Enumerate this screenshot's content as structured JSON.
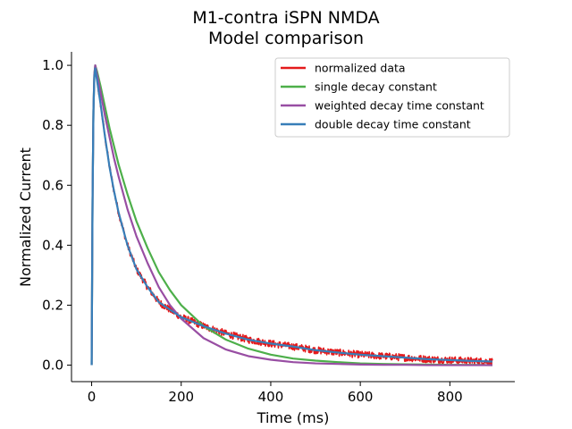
{
  "chart_data": {
    "type": "line",
    "title": "M1-contra    iSPN    NMDA",
    "subtitle": "Model comparison",
    "xlabel": "Time (ms)",
    "ylabel": "Normalized Current",
    "xlim": [
      -45,
      945
    ],
    "ylim": [
      -0.055,
      1.045
    ],
    "xticks": [
      0,
      200,
      400,
      600,
      800
    ],
    "yticks": [
      0.0,
      0.2,
      0.4,
      0.6,
      0.8,
      1.0
    ],
    "ytick_labels": [
      "0.0",
      "0.2",
      "0.4",
      "0.6",
      "0.8",
      "1.0"
    ],
    "grid": false,
    "legend_position": "top-right",
    "series": [
      {
        "name": "normalized data",
        "color": "#e41a1c",
        "noisy": true,
        "x": [
          0,
          2,
          4,
          6,
          8,
          12,
          20,
          30,
          40,
          50,
          60,
          80,
          100,
          125,
          150,
          175,
          200,
          250,
          300,
          350,
          400,
          450,
          500,
          550,
          600,
          650,
          700,
          750,
          800,
          850,
          895
        ],
        "y": [
          0.0,
          0.55,
          0.85,
          0.96,
          0.99,
          0.95,
          0.87,
          0.76,
          0.66,
          0.58,
          0.51,
          0.4,
          0.32,
          0.26,
          0.21,
          0.185,
          0.16,
          0.13,
          0.105,
          0.085,
          0.072,
          0.062,
          0.05,
          0.042,
          0.035,
          0.03,
          0.025,
          0.02,
          0.017,
          0.014,
          0.012
        ]
      },
      {
        "name": "single decay constant",
        "color": "#4daf4a",
        "x": [
          0,
          2,
          4,
          6,
          8,
          12,
          20,
          30,
          40,
          50,
          60,
          80,
          100,
          125,
          150,
          175,
          200,
          250,
          300,
          350,
          400,
          450,
          500,
          550,
          600,
          650,
          700,
          750,
          800,
          850,
          895
        ],
        "y": [
          0.0,
          0.55,
          0.85,
          0.97,
          1.0,
          0.98,
          0.93,
          0.86,
          0.79,
          0.73,
          0.67,
          0.57,
          0.48,
          0.39,
          0.31,
          0.25,
          0.2,
          0.13,
          0.085,
          0.055,
          0.035,
          0.022,
          0.015,
          0.01,
          0.006,
          0.004,
          0.003,
          0.002,
          0.001,
          0.001,
          0.0
        ]
      },
      {
        "name": "weighted decay time constant",
        "color": "#984ea3",
        "x": [
          0,
          2,
          4,
          6,
          8,
          12,
          20,
          30,
          40,
          50,
          60,
          80,
          100,
          125,
          150,
          175,
          200,
          250,
          300,
          350,
          400,
          450,
          500,
          550,
          600,
          650,
          700,
          750,
          800,
          850,
          895
        ],
        "y": [
          0.0,
          0.55,
          0.85,
          0.97,
          1.0,
          0.97,
          0.91,
          0.83,
          0.76,
          0.69,
          0.63,
          0.52,
          0.43,
          0.34,
          0.26,
          0.2,
          0.155,
          0.09,
          0.052,
          0.03,
          0.018,
          0.01,
          0.006,
          0.004,
          0.002,
          0.001,
          0.001,
          0.0,
          0.0,
          0.0,
          0.0
        ]
      },
      {
        "name": "double decay time constant",
        "color": "#377eb8",
        "x": [
          0,
          2,
          4,
          6,
          8,
          12,
          20,
          30,
          40,
          50,
          60,
          80,
          100,
          125,
          150,
          175,
          200,
          250,
          300,
          350,
          400,
          450,
          500,
          550,
          600,
          650,
          700,
          750,
          800,
          850,
          895
        ],
        "y": [
          0.0,
          0.55,
          0.85,
          0.96,
          0.99,
          0.95,
          0.87,
          0.76,
          0.66,
          0.58,
          0.51,
          0.4,
          0.32,
          0.26,
          0.21,
          0.185,
          0.16,
          0.13,
          0.105,
          0.085,
          0.072,
          0.062,
          0.05,
          0.042,
          0.035,
          0.03,
          0.025,
          0.02,
          0.017,
          0.014,
          0.012
        ]
      }
    ]
  }
}
